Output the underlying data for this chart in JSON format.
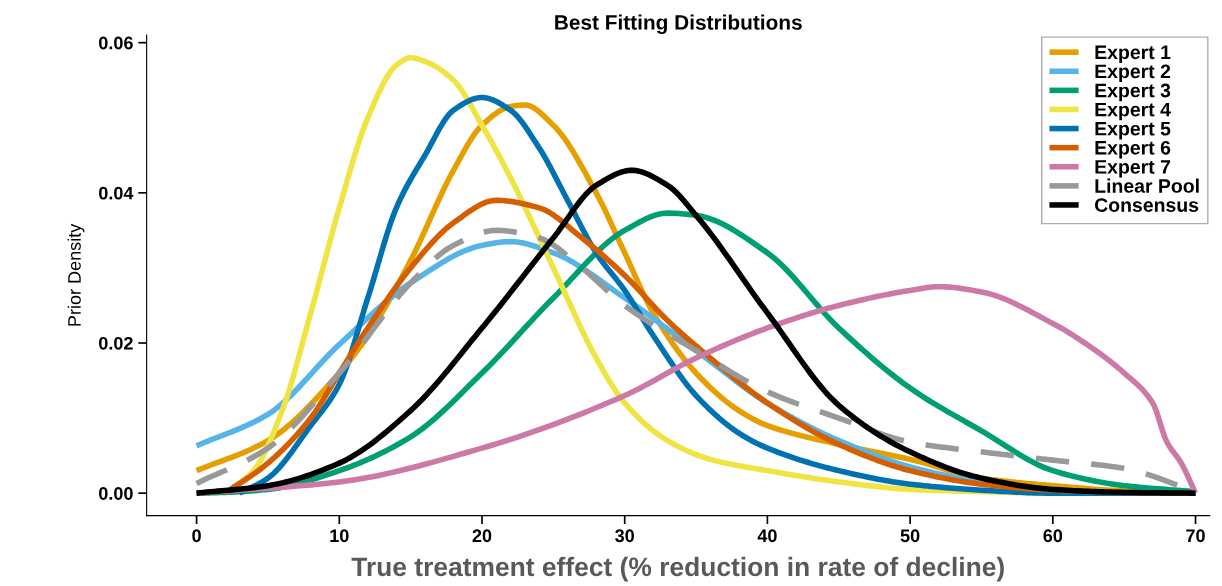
{
  "chart_data": {
    "type": "line",
    "title": "Best Fitting Distributions",
    "xlabel": "True treatment effect (% reduction in rate of decline)",
    "ylabel": "Prior Density",
    "xlim": [
      -3.5,
      71
    ],
    "ylim": [
      -0.003,
      0.061
    ],
    "xticks": [
      0,
      10,
      20,
      30,
      40,
      50,
      60,
      70
    ],
    "yticks": [
      {
        "value": 0,
        "label": "0.00"
      },
      {
        "value": 0.02,
        "label": "0.02"
      },
      {
        "value": 0.04,
        "label": "0.04"
      },
      {
        "value": 0.06,
        "label": "0.06"
      }
    ],
    "grid": false,
    "legend": "top right",
    "line_style": "solid",
    "marker": "none",
    "series": [
      {
        "name": "Expert 1",
        "color": "#e69f00",
        "x": [
          0,
          5,
          10,
          12,
          15,
          18,
          20,
          22,
          23,
          25,
          28,
          30,
          32,
          35,
          38,
          40,
          45,
          50,
          55,
          60,
          65,
          70
        ],
        "values": [
          0.003,
          0.007,
          0.016,
          0.021,
          0.031,
          0.043,
          0.049,
          0.0515,
          0.0517,
          0.049,
          0.04,
          0.032,
          0.024,
          0.016,
          0.011,
          0.009,
          0.0065,
          0.0045,
          0.002,
          0.001,
          0.0003,
          0
        ]
      },
      {
        "name": "Expert 2",
        "color": "#56b4e9",
        "x": [
          0,
          5,
          10,
          15,
          20,
          22,
          25,
          30,
          35,
          40,
          45,
          50,
          55,
          60
        ],
        "values": [
          0.0063,
          0.0105,
          0.0198,
          0.028,
          0.033,
          0.0335,
          0.032,
          0.026,
          0.019,
          0.012,
          0.007,
          0.0035,
          0.0015,
          0.0005
        ]
      },
      {
        "name": "Expert 3",
        "color": "#009e73",
        "x": [
          0,
          2,
          5,
          10,
          15,
          20,
          25,
          30,
          33,
          35,
          40,
          45,
          50,
          55,
          60,
          65,
          70
        ],
        "values": [
          0,
          0.0001,
          0.0005,
          0.003,
          0.0075,
          0.016,
          0.026,
          0.035,
          0.0373,
          0.037,
          0.032,
          0.022,
          0.014,
          0.0083,
          0.003,
          0.001,
          0.0002
        ]
      },
      {
        "name": "Expert 4",
        "color": "#f0e442",
        "x": [
          2,
          4,
          6,
          8,
          10,
          12,
          14,
          15,
          16,
          18,
          20,
          22,
          25,
          28,
          30,
          33,
          36,
          40,
          45,
          50,
          55,
          60,
          70
        ],
        "values": [
          0,
          0.003,
          0.011,
          0.024,
          0.038,
          0.05,
          0.057,
          0.058,
          0.0575,
          0.055,
          0.049,
          0.042,
          0.03,
          0.018,
          0.012,
          0.007,
          0.0045,
          0.003,
          0.0015,
          0.0005,
          0.0002,
          0,
          0
        ]
      },
      {
        "name": "Expert 5",
        "color": "#0072b2",
        "x": [
          3,
          5,
          8,
          10,
          12,
          14,
          16,
          18,
          20,
          22,
          24,
          26,
          28,
          30,
          32,
          35,
          38,
          40,
          45,
          50,
          55,
          60,
          70
        ],
        "values": [
          0,
          0.002,
          0.009,
          0.0145,
          0.026,
          0.038,
          0.045,
          0.051,
          0.0527,
          0.051,
          0.046,
          0.039,
          0.032,
          0.027,
          0.021,
          0.013,
          0.008,
          0.006,
          0.003,
          0.0012,
          0.0004,
          0,
          0
        ]
      },
      {
        "name": "Expert 6",
        "color": "#d55e00",
        "x": [
          2,
          5,
          8,
          10,
          12,
          15,
          18,
          21,
          24,
          27,
          30,
          33,
          36,
          40,
          45,
          50,
          55,
          60,
          65,
          70
        ],
        "values": [
          0,
          0.004,
          0.01,
          0.016,
          0.022,
          0.03,
          0.036,
          0.039,
          0.038,
          0.034,
          0.029,
          0.023,
          0.018,
          0.012,
          0.0065,
          0.003,
          0.0012,
          0.0004,
          0.0001,
          0
        ]
      },
      {
        "name": "Expert 7",
        "color": "#cc79a7",
        "x": [
          0,
          10,
          20,
          30,
          35,
          40,
          45,
          50,
          52,
          55,
          60,
          63,
          65,
          67,
          68,
          69,
          70
        ],
        "values": [
          0,
          0.0015,
          0.006,
          0.013,
          0.018,
          0.022,
          0.025,
          0.027,
          0.0275,
          0.0268,
          0.0226,
          0.019,
          0.016,
          0.012,
          0.0068,
          0.004,
          0
        ]
      },
      {
        "name": "Linear Pool",
        "color": "#999999",
        "line_style": "dashed",
        "x": [
          0,
          5,
          10,
          15,
          18,
          21,
          24,
          27,
          30,
          35,
          40,
          45,
          50,
          55,
          60,
          65,
          70
        ],
        "values": [
          0.0013,
          0.006,
          0.016,
          0.028,
          0.033,
          0.035,
          0.034,
          0.03,
          0.025,
          0.019,
          0.0135,
          0.01,
          0.0068,
          0.0055,
          0.0044,
          0.0033,
          0.0002
        ]
      },
      {
        "name": "Consensus",
        "color": "#000000",
        "x": [
          0,
          5,
          10,
          15,
          20,
          25,
          28,
          30.5,
          33,
          35,
          40,
          45,
          50,
          55,
          60,
          65,
          70
        ],
        "values": [
          0,
          0.001,
          0.004,
          0.011,
          0.022,
          0.034,
          0.041,
          0.043,
          0.041,
          0.037,
          0.024,
          0.0117,
          0.0055,
          0.002,
          0.0005,
          0.0001,
          0
        ]
      }
    ]
  }
}
